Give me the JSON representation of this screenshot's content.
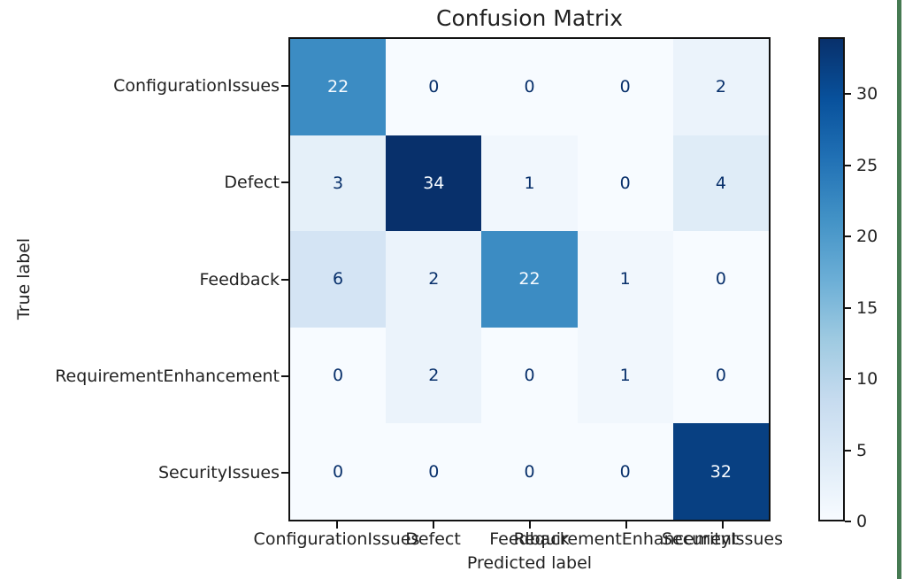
{
  "chart_data": {
    "type": "heatmap",
    "title": "Confusion Matrix",
    "xlabel": "Predicted label",
    "ylabel": "True label",
    "categories": [
      "ConfigurationIssues",
      "Defect",
      "Feedback",
      "RequirementEnhancement",
      "SecurityIssues"
    ],
    "matrix": [
      [
        22,
        0,
        0,
        0,
        2
      ],
      [
        3,
        34,
        1,
        0,
        4
      ],
      [
        6,
        2,
        22,
        1,
        0
      ],
      [
        0,
        2,
        0,
        1,
        0
      ],
      [
        0,
        0,
        0,
        0,
        32
      ]
    ],
    "vmin": 0,
    "vmax": 34,
    "colorbar_ticks": [
      0,
      5,
      10,
      15,
      20,
      25,
      30
    ],
    "colormap": {
      "name": "Blues",
      "stops": [
        "#f7fbff",
        "#deebf7",
        "#c6dbef",
        "#9ecae1",
        "#6baed6",
        "#4292c6",
        "#2171b5",
        "#08519c",
        "#08306b"
      ]
    },
    "cell_text_color_light": "#f7fbff",
    "cell_text_color_dark": "#08306b",
    "grid": false,
    "legend_position": "right-colorbar"
  },
  "frame": {
    "background_color": "#ffffff",
    "right_stripe_color": "#467a52"
  }
}
